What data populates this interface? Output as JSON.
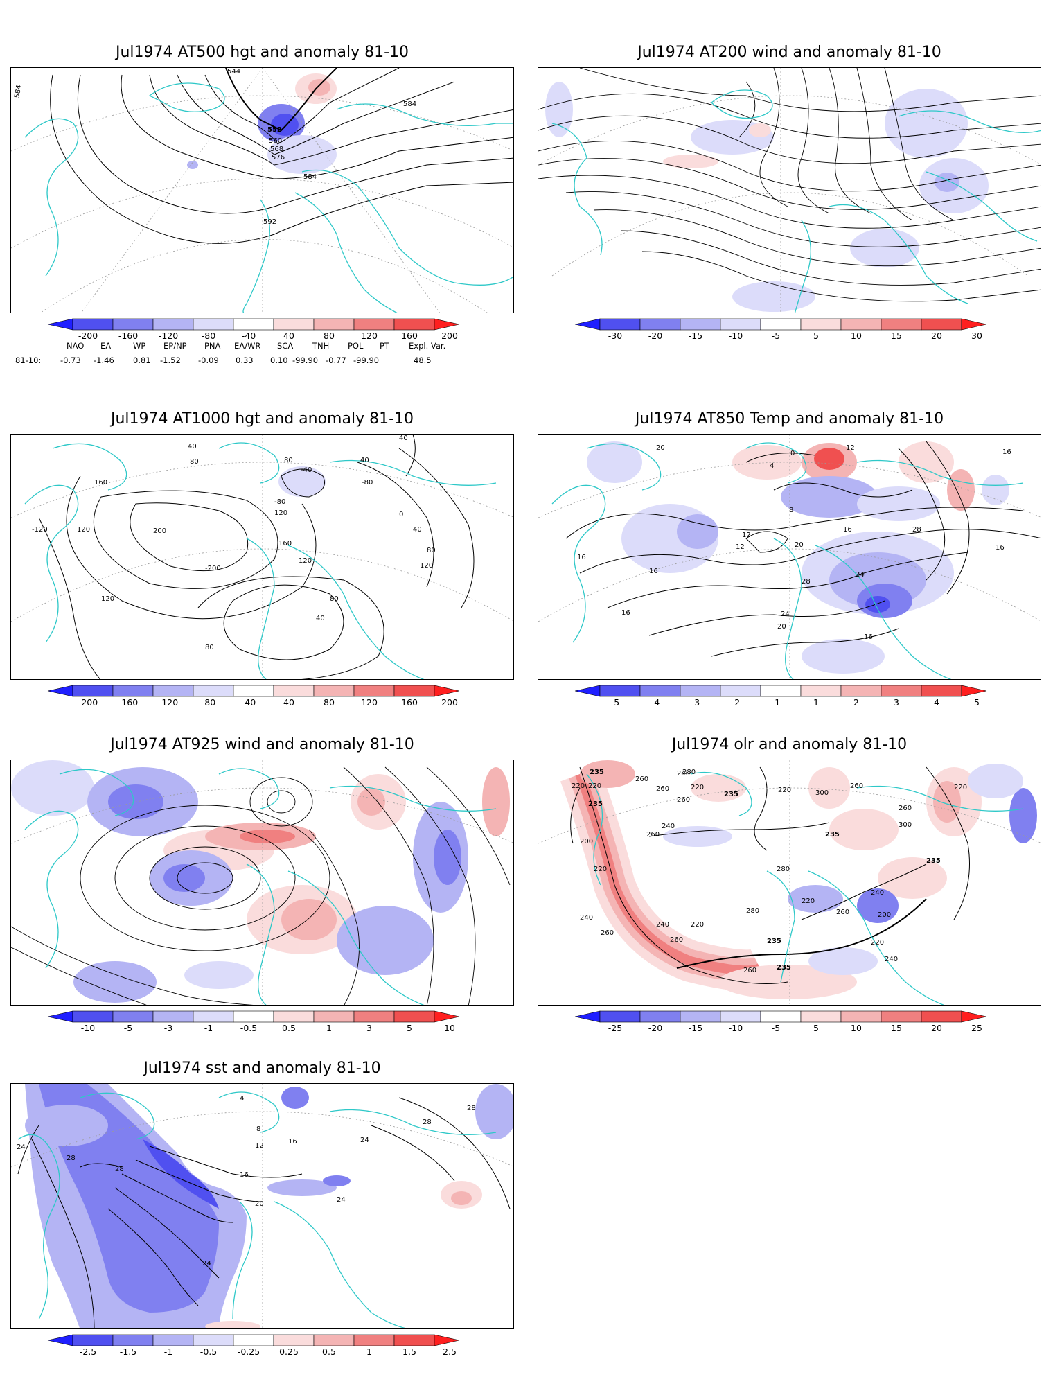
{
  "panels": [
    {
      "id": "p1",
      "title": "Jul1974 AT500 hgt and anomaly 81-10",
      "contour_labels": [
        "544",
        "552",
        "560",
        "568",
        "576",
        "584",
        "584",
        "584",
        "592"
      ],
      "colorbar": {
        "ticks": [
          "-200",
          "-160",
          "-120",
          "-80",
          "-40",
          "40",
          "80",
          "120",
          "160",
          "200"
        ]
      }
    },
    {
      "id": "p2",
      "title": "Jul1974 AT200 wind and anomaly 81-10",
      "contour_labels": [],
      "colorbar": {
        "ticks": [
          "-30",
          "-20",
          "-15",
          "-10",
          "-5",
          "5",
          "10",
          "15",
          "20",
          "30"
        ]
      }
    },
    {
      "id": "p3",
      "title": "Jul1974 AT1000 hgt and anomaly 81-10",
      "contour_labels": [
        "160",
        "80",
        "40",
        "80",
        "-40",
        "40",
        "40",
        "-80",
        "0",
        "40",
        "120",
        "200",
        "-200",
        "160",
        "120",
        "-80",
        "80",
        "-120",
        "120",
        "120",
        "80",
        "120",
        "40",
        "80"
      ],
      "colorbar": {
        "ticks": [
          "-200",
          "-160",
          "-120",
          "-80",
          "-40",
          "40",
          "80",
          "120",
          "160",
          "200"
        ]
      }
    },
    {
      "id": "p4",
      "title": "Jul1974 AT850 Temp and anomaly 81-10",
      "contour_labels": [
        "20",
        "12",
        "4",
        "0",
        "8",
        "16",
        "12",
        "12",
        "20",
        "16",
        "28",
        "24",
        "28",
        "24",
        "20",
        "16",
        "16",
        "16",
        "16",
        "16"
      ],
      "colorbar": {
        "ticks": [
          "-5",
          "-4",
          "-3",
          "-2",
          "-1",
          "1",
          "2",
          "3",
          "4",
          "5"
        ]
      }
    },
    {
      "id": "p5",
      "title": "Jul1974 AT925 wind and anomaly 81-10",
      "contour_labels": [],
      "colorbar": {
        "ticks": [
          "-10",
          "-5",
          "-3",
          "-1",
          "-0.5",
          "0.5",
          "1",
          "3",
          "5",
          "10"
        ]
      }
    },
    {
      "id": "p6",
      "title": "Jul1974 olr and anomaly 81-10",
      "contour_labels": [
        "235",
        "220",
        "260",
        "240",
        "220",
        "260",
        "235",
        "260",
        "280",
        "300",
        "220",
        "200",
        "235",
        "260",
        "240",
        "260",
        "235",
        "220",
        "280",
        "260",
        "300",
        "220",
        "240",
        "260",
        "235",
        "220",
        "240",
        "200",
        "220",
        "260",
        "240",
        "220",
        "260",
        "280",
        "235",
        "260",
        "240",
        "220",
        "235"
      ],
      "colorbar": {
        "ticks": [
          "-25",
          "-20",
          "-15",
          "-10",
          "-5",
          "5",
          "10",
          "15",
          "20",
          "25"
        ]
      }
    },
    {
      "id": "p7",
      "title": "Jul1974 sst and anomaly 81-10",
      "contour_labels": [
        "28",
        "24",
        "28",
        "12",
        "16",
        "20",
        "24",
        "24",
        "28",
        "28",
        "4",
        "8",
        "16",
        "24"
      ],
      "colorbar": {
        "ticks": [
          "-2.5",
          "-1.5",
          "-1",
          "-0.5",
          "-0.25",
          "0.25",
          "0.5",
          "1",
          "1.5",
          "2.5"
        ]
      }
    }
  ],
  "teleconnection": {
    "headers": [
      "NAO",
      "EA",
      "WP",
      "EP/NP",
      "PNA",
      "EA/WR",
      "SCA",
      "TNH",
      "POL",
      "PT",
      "Expl. Var."
    ],
    "row_label": "81-10:",
    "values": [
      "-0.73",
      "-1.46",
      "0.81",
      "-1.52",
      "-0.09",
      "0.33",
      "0.10",
      "-99.90",
      "-0.77",
      "-99.90",
      "48.5"
    ]
  },
  "colors": {
    "coast": "#2ec8c8",
    "neg": [
      "#1f1fff",
      "#5050f0",
      "#8080f0",
      "#b4b4f4",
      "#dcdcfa"
    ],
    "pos": [
      "#fadcdc",
      "#f4b4b4",
      "#f08080",
      "#f05050",
      "#ff1f1f"
    ],
    "contour": "#000000",
    "grid": "#9a9a9a"
  }
}
